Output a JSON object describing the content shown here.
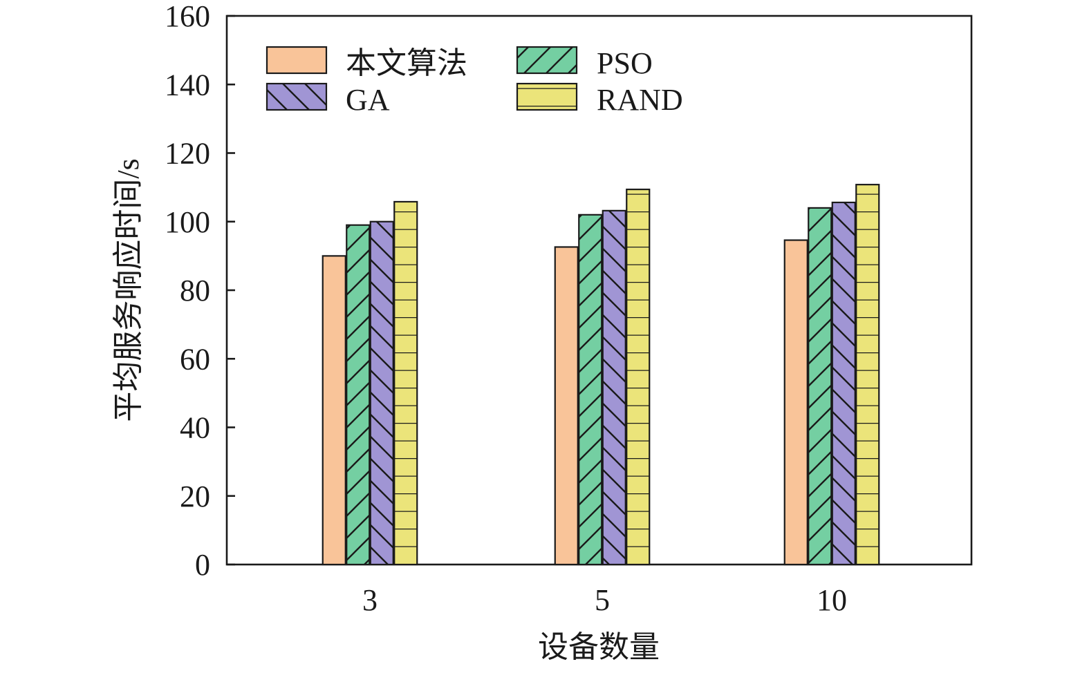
{
  "chart_data": {
    "type": "bar",
    "title": "",
    "xlabel": "设备数量",
    "ylabel": "平均服务响应时间/s",
    "ylim": [
      0,
      160
    ],
    "yticks": [
      0,
      20,
      40,
      60,
      80,
      100,
      120,
      140,
      160
    ],
    "ytick_labels": [
      "0",
      "20",
      "40",
      "60",
      "80",
      "100",
      "120",
      "140",
      "160"
    ],
    "categories": [
      "3",
      "5",
      "10"
    ],
    "grid": false,
    "legend_position": "top-left",
    "series": [
      {
        "name": "本文算法",
        "values": [
          90,
          92.6,
          94.6
        ],
        "color": "#f9c499",
        "pattern": "none"
      },
      {
        "name": "PSO",
        "values": [
          99,
          102,
          104
        ],
        "color": "#74cfa2",
        "pattern": "diagonal-up"
      },
      {
        "name": "GA",
        "values": [
          100,
          103.2,
          105.6
        ],
        "color": "#a095d4",
        "pattern": "diagonal-down"
      },
      {
        "name": "RAND",
        "values": [
          105.8,
          109.4,
          110.8
        ],
        "color": "#ebe47a",
        "pattern": "horizontal"
      }
    ]
  }
}
